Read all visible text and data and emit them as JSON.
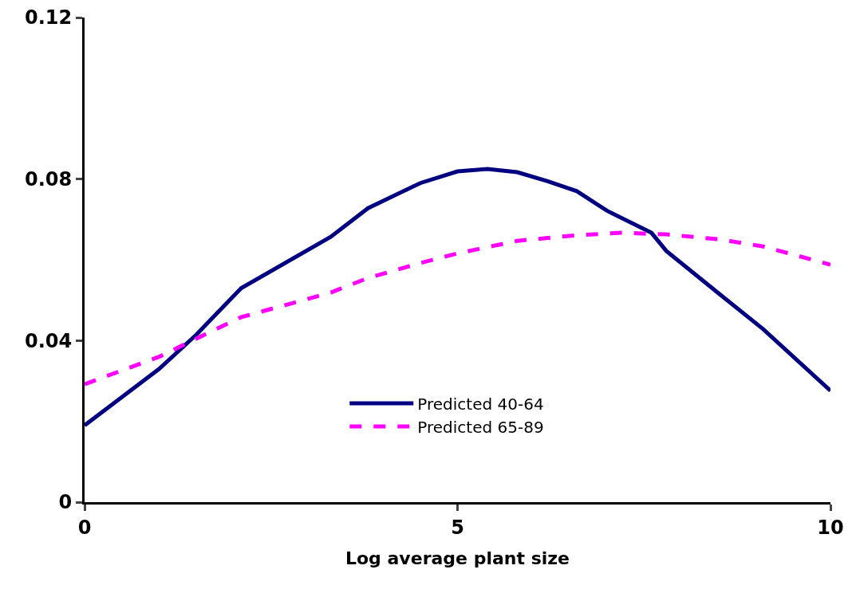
{
  "chart_data": {
    "type": "line",
    "xlabel": "Log average plant size",
    "xlim": [
      0,
      10
    ],
    "xticks": [
      0,
      5,
      10
    ],
    "ylim": [
      0,
      0.12
    ],
    "yticks": [
      0,
      0.04,
      0.08,
      0.12
    ],
    "grid": false,
    "legend": "bottom",
    "marker": "none",
    "series": [
      {
        "name": "Predicted 40-64",
        "color": "#000080",
        "line_style": "solid",
        "x": [
          0,
          1,
          1.5,
          2.1,
          3.3,
          3.8,
          4.5,
          5,
          5.4,
          5.8,
          6.2,
          6.6,
          7,
          7.6,
          7.8,
          8.5,
          9.1,
          10
        ],
        "values": [
          0.019,
          0.033,
          0.0415,
          0.053,
          0.0657,
          0.0728,
          0.079,
          0.0819,
          0.0825,
          0.0817,
          0.0795,
          0.077,
          0.0722,
          0.0667,
          0.0622,
          0.0517,
          0.0428,
          0.0276
        ]
      },
      {
        "name": "Predicted 65-89",
        "color": "#ff00ff",
        "line_style": "dashed",
        "x": [
          0,
          1,
          1.5,
          2.1,
          3.3,
          3.8,
          4.5,
          5,
          5.8,
          6.6,
          7.2,
          7.8,
          8.5,
          9.1,
          10
        ],
        "values": [
          0.0292,
          0.036,
          0.0405,
          0.0458,
          0.0519,
          0.0555,
          0.0592,
          0.0616,
          0.0647,
          0.0661,
          0.0667,
          0.0663,
          0.0651,
          0.0633,
          0.0588
        ]
      }
    ]
  }
}
